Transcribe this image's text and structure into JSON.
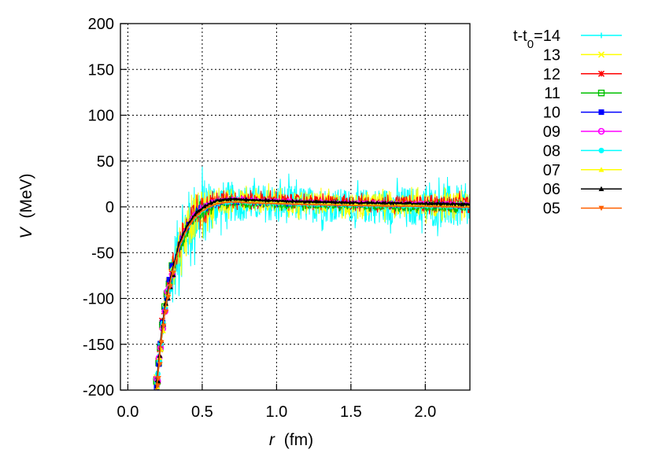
{
  "chart_data": {
    "type": "line",
    "xlabel": "r (fm)",
    "xlabel_var": "r",
    "xlabel_unit": "(fm)",
    "ylabel": "V (MeV)",
    "ylabel_var": "V",
    "ylabel_unit": "(MeV)",
    "xlim": [
      -0.05,
      2.3
    ],
    "ylim": [
      -200,
      200
    ],
    "xticks": [
      "0.0",
      "0.5",
      "1.0",
      "1.5",
      "2.0"
    ],
    "yticks": [
      "200",
      "150",
      "100",
      "50",
      "0",
      "-50",
      "-100",
      "-150",
      "-200"
    ],
    "grid": true,
    "legend_position": "right",
    "legend_title_prefix": "t-t",
    "legend_title_sub": "0",
    "legend_title_suffix": "=14",
    "series": [
      {
        "name": "14",
        "color": "#00ffff",
        "marker": "vbar",
        "noise": 1.0
      },
      {
        "name": "13",
        "color": "#ffff00",
        "marker": "x",
        "noise": 0.6
      },
      {
        "name": "12",
        "color": "#ff0000",
        "marker": "star",
        "noise": 0.38
      },
      {
        "name": "11",
        "color": "#00c000",
        "marker": "square-open",
        "noise": 0.22
      },
      {
        "name": "10",
        "color": "#0000ff",
        "marker": "square",
        "noise": 0.14
      },
      {
        "name": "09",
        "color": "#ff00ff",
        "marker": "circle-open",
        "noise": 0.1
      },
      {
        "name": "08",
        "color": "#00ffff",
        "marker": "circle",
        "noise": 0.07
      },
      {
        "name": "07",
        "color": "#ffff00",
        "marker": "triangle",
        "noise": 0.05
      },
      {
        "name": "06",
        "color": "#000000",
        "marker": "triangle",
        "noise": 0.03
      },
      {
        "name": "05",
        "color": "#ff6000",
        "marker": "triangle-down",
        "noise": 0.02
      }
    ],
    "potential_shape": {
      "r_points": [
        0.19,
        0.2,
        0.22,
        0.25,
        0.28,
        0.3,
        0.35,
        0.4,
        0.45,
        0.5,
        0.55,
        0.6,
        0.7,
        0.8,
        1.0,
        1.2,
        1.5,
        2.0,
        2.3
      ],
      "v_points": [
        -200,
        -185,
        -150,
        -110,
        -85,
        -70,
        -40,
        -22,
        -10,
        -3,
        2,
        5,
        7,
        6,
        5,
        4,
        3,
        2,
        1
      ],
      "noise_amplitude": [
        0,
        4,
        10,
        22,
        30,
        35,
        40,
        40,
        40,
        35,
        30,
        25,
        22,
        20,
        22,
        20,
        18,
        22,
        25
      ]
    }
  }
}
